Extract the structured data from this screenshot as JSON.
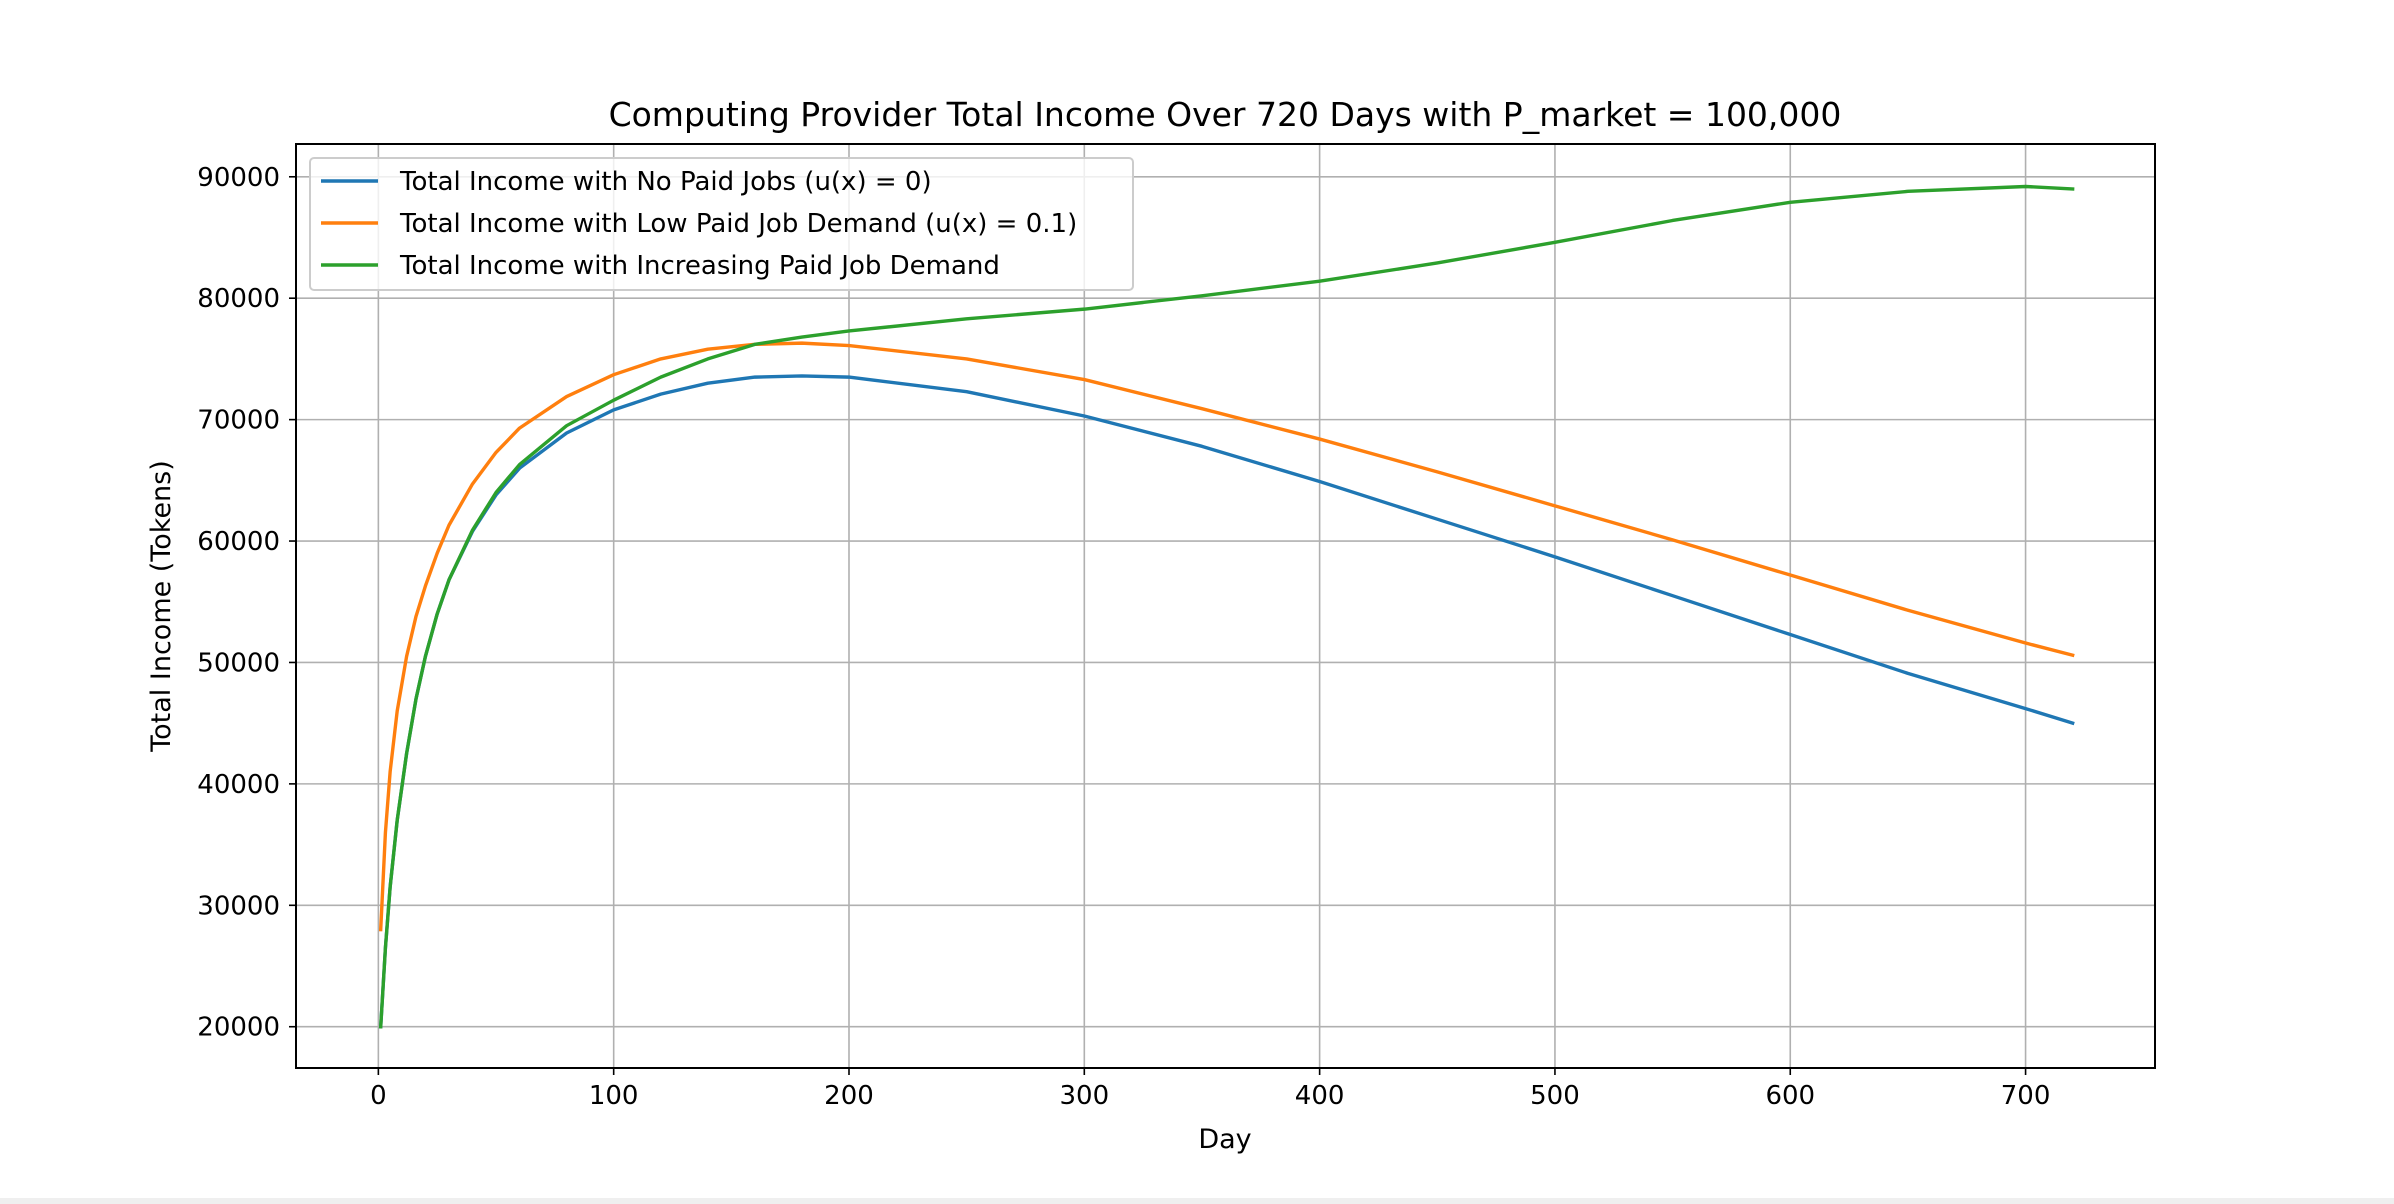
{
  "chart_data": {
    "type": "line",
    "title": "Computing Provider Total Income Over 720 Days with P_market = 100,000",
    "xlabel": "Day",
    "ylabel": "Total Income (Tokens)",
    "xlim": [
      -35,
      755
    ],
    "ylim": [
      16600,
      92700
    ],
    "xticks": [
      0,
      100,
      200,
      300,
      400,
      500,
      600,
      700
    ],
    "yticks": [
      20000,
      30000,
      40000,
      50000,
      60000,
      70000,
      80000,
      90000
    ],
    "grid": true,
    "legend_position": "upper-left",
    "series": [
      {
        "name": "Total Income with No Paid Jobs (u(x) = 0)",
        "color": "#1f77b4",
        "x": [
          1,
          3,
          5,
          8,
          12,
          16,
          20,
          25,
          30,
          40,
          50,
          60,
          80,
          100,
          120,
          140,
          160,
          180,
          200,
          250,
          300,
          350,
          400,
          450,
          500,
          550,
          600,
          650,
          700,
          720
        ],
        "y": [
          20000,
          26500,
          31500,
          37000,
          42500,
          47000,
          50500,
          54000,
          56800,
          60800,
          63800,
          66000,
          68900,
          70800,
          72100,
          73000,
          73500,
          73600,
          73500,
          72300,
          70300,
          67800,
          64900,
          61800,
          58700,
          55500,
          52300,
          49100,
          46200,
          45000
        ]
      },
      {
        "name": "Total Income with Low Paid Job Demand (u(x) = 0.1)",
        "color": "#ff7f0e",
        "x": [
          1,
          3,
          5,
          8,
          12,
          16,
          20,
          25,
          30,
          40,
          50,
          60,
          80,
          100,
          120,
          140,
          160,
          180,
          200,
          250,
          300,
          350,
          400,
          450,
          500,
          550,
          600,
          650,
          700,
          720
        ],
        "y": [
          28000,
          36000,
          41000,
          46000,
          50500,
          53800,
          56300,
          59000,
          61300,
          64700,
          67300,
          69300,
          71900,
          73700,
          75000,
          75800,
          76200,
          76300,
          76100,
          75000,
          73300,
          70900,
          68400,
          65700,
          62900,
          60100,
          57200,
          54300,
          51600,
          50600
        ]
      },
      {
        "name": "Total Income with Increasing Paid Job Demand",
        "color": "#2ca02c",
        "x": [
          1,
          3,
          5,
          8,
          12,
          16,
          20,
          25,
          30,
          40,
          50,
          60,
          80,
          100,
          120,
          140,
          160,
          180,
          200,
          250,
          300,
          350,
          400,
          450,
          500,
          550,
          600,
          650,
          700,
          720
        ],
        "y": [
          20000,
          26500,
          31500,
          37000,
          42500,
          47000,
          50500,
          54000,
          56800,
          60900,
          64000,
          66300,
          69500,
          71600,
          73500,
          75000,
          76200,
          76800,
          77300,
          78300,
          79100,
          80200,
          81400,
          82900,
          84600,
          86400,
          87900,
          88800,
          89200,
          89000
        ]
      }
    ]
  }
}
